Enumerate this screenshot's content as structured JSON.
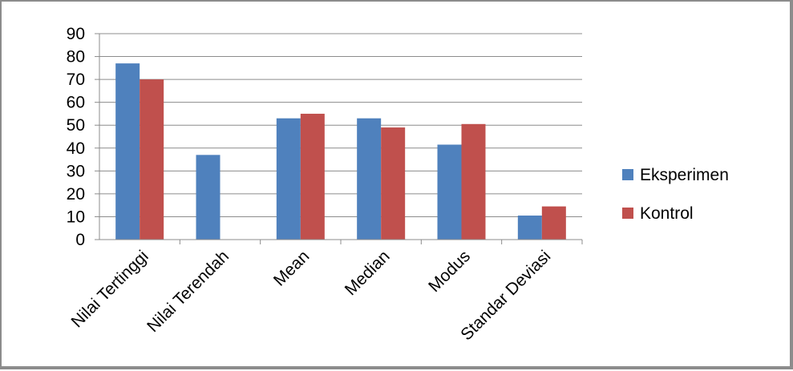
{
  "chart_data": {
    "type": "bar",
    "categories": [
      "Nilai Tertinggi",
      "Nilai Terendah",
      "Mean",
      "Median",
      "Modus",
      "Standar Deviasi"
    ],
    "series": [
      {
        "name": "Eksperimen",
        "color": "#4f81bd",
        "values": [
          77,
          37,
          53,
          53,
          41.5,
          10.5
        ]
      },
      {
        "name": "Kontrol",
        "color": "#c0504d",
        "values": [
          70,
          0,
          55,
          49,
          50.5,
          14.5
        ]
      }
    ],
    "y_ticks": [
      "0",
      "10",
      "20",
      "30",
      "40",
      "50",
      "60",
      "70",
      "80",
      "90"
    ],
    "ylim": [
      0,
      90
    ],
    "grid": true,
    "legend_position": "right",
    "title": "",
    "xlabel": "",
    "ylabel": ""
  }
}
